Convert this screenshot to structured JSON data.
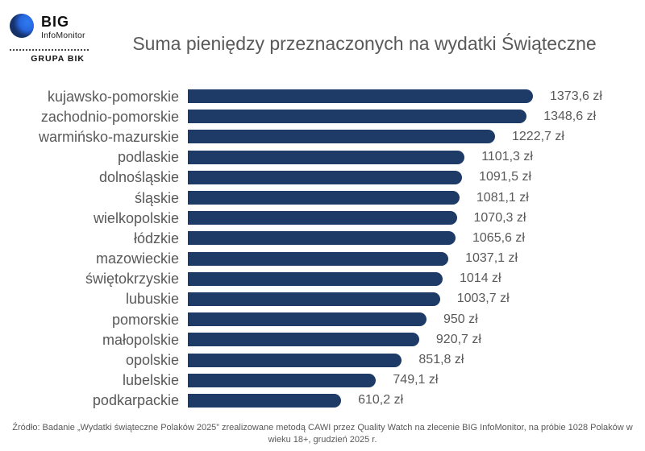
{
  "logo": {
    "big": "BIG",
    "infomonitor": "InfoMonitor",
    "grupa": "GRUPA BIK"
  },
  "chart_data": {
    "type": "bar",
    "orientation": "horizontal",
    "title": "Suma pieniędzy przeznaczonych na wydatki Świąteczne",
    "xlabel": "",
    "ylabel": "",
    "xlim": [
      0,
      1373.6
    ],
    "grid": false,
    "legend": "none",
    "bar_color": "#1e3a66",
    "label_color": "#595959",
    "unit": "zł",
    "categories": [
      "kujawsko-pomorskie",
      "zachodnio-pomorskie",
      "warmińsko-mazurskie",
      "podlaskie",
      "dolnośląskie",
      "śląskie",
      "wielkopolskie",
      "łódzkie",
      "mazowieckie",
      "świętokrzyskie",
      "lubuskie",
      "pomorskie",
      "małopolskie",
      "opolskie",
      "lubelskie",
      "podkarpackie"
    ],
    "values": [
      1373.6,
      1348.6,
      1222.7,
      1101.3,
      1091.5,
      1081.1,
      1070.3,
      1065.6,
      1037.1,
      1014,
      1003.7,
      950,
      920.7,
      851.8,
      749.1,
      610.2
    ],
    "value_labels": [
      "1373,6 zł",
      "1348,6 zł",
      "1222,7 zł",
      "1101,3 zł",
      "1091,5 zł",
      "1081,1 zł",
      "1070,3 zł",
      "1065,6 zł",
      "1037,1 zł",
      "1014 zł",
      "1003,7 zł",
      "950 zł",
      "920,7 zł",
      "851,8 zł",
      "749,1 zł",
      "610,2 zł"
    ]
  },
  "footer": {
    "source": "Źródło: Badanie „Wydatki świąteczne Polaków 2025” zrealizowane metodą CAWI przez Quality Watch na zlecenie BIG InfoMonitor, na próbie 1028 Polaków w wieku 18+, grudzień 2025 r."
  }
}
